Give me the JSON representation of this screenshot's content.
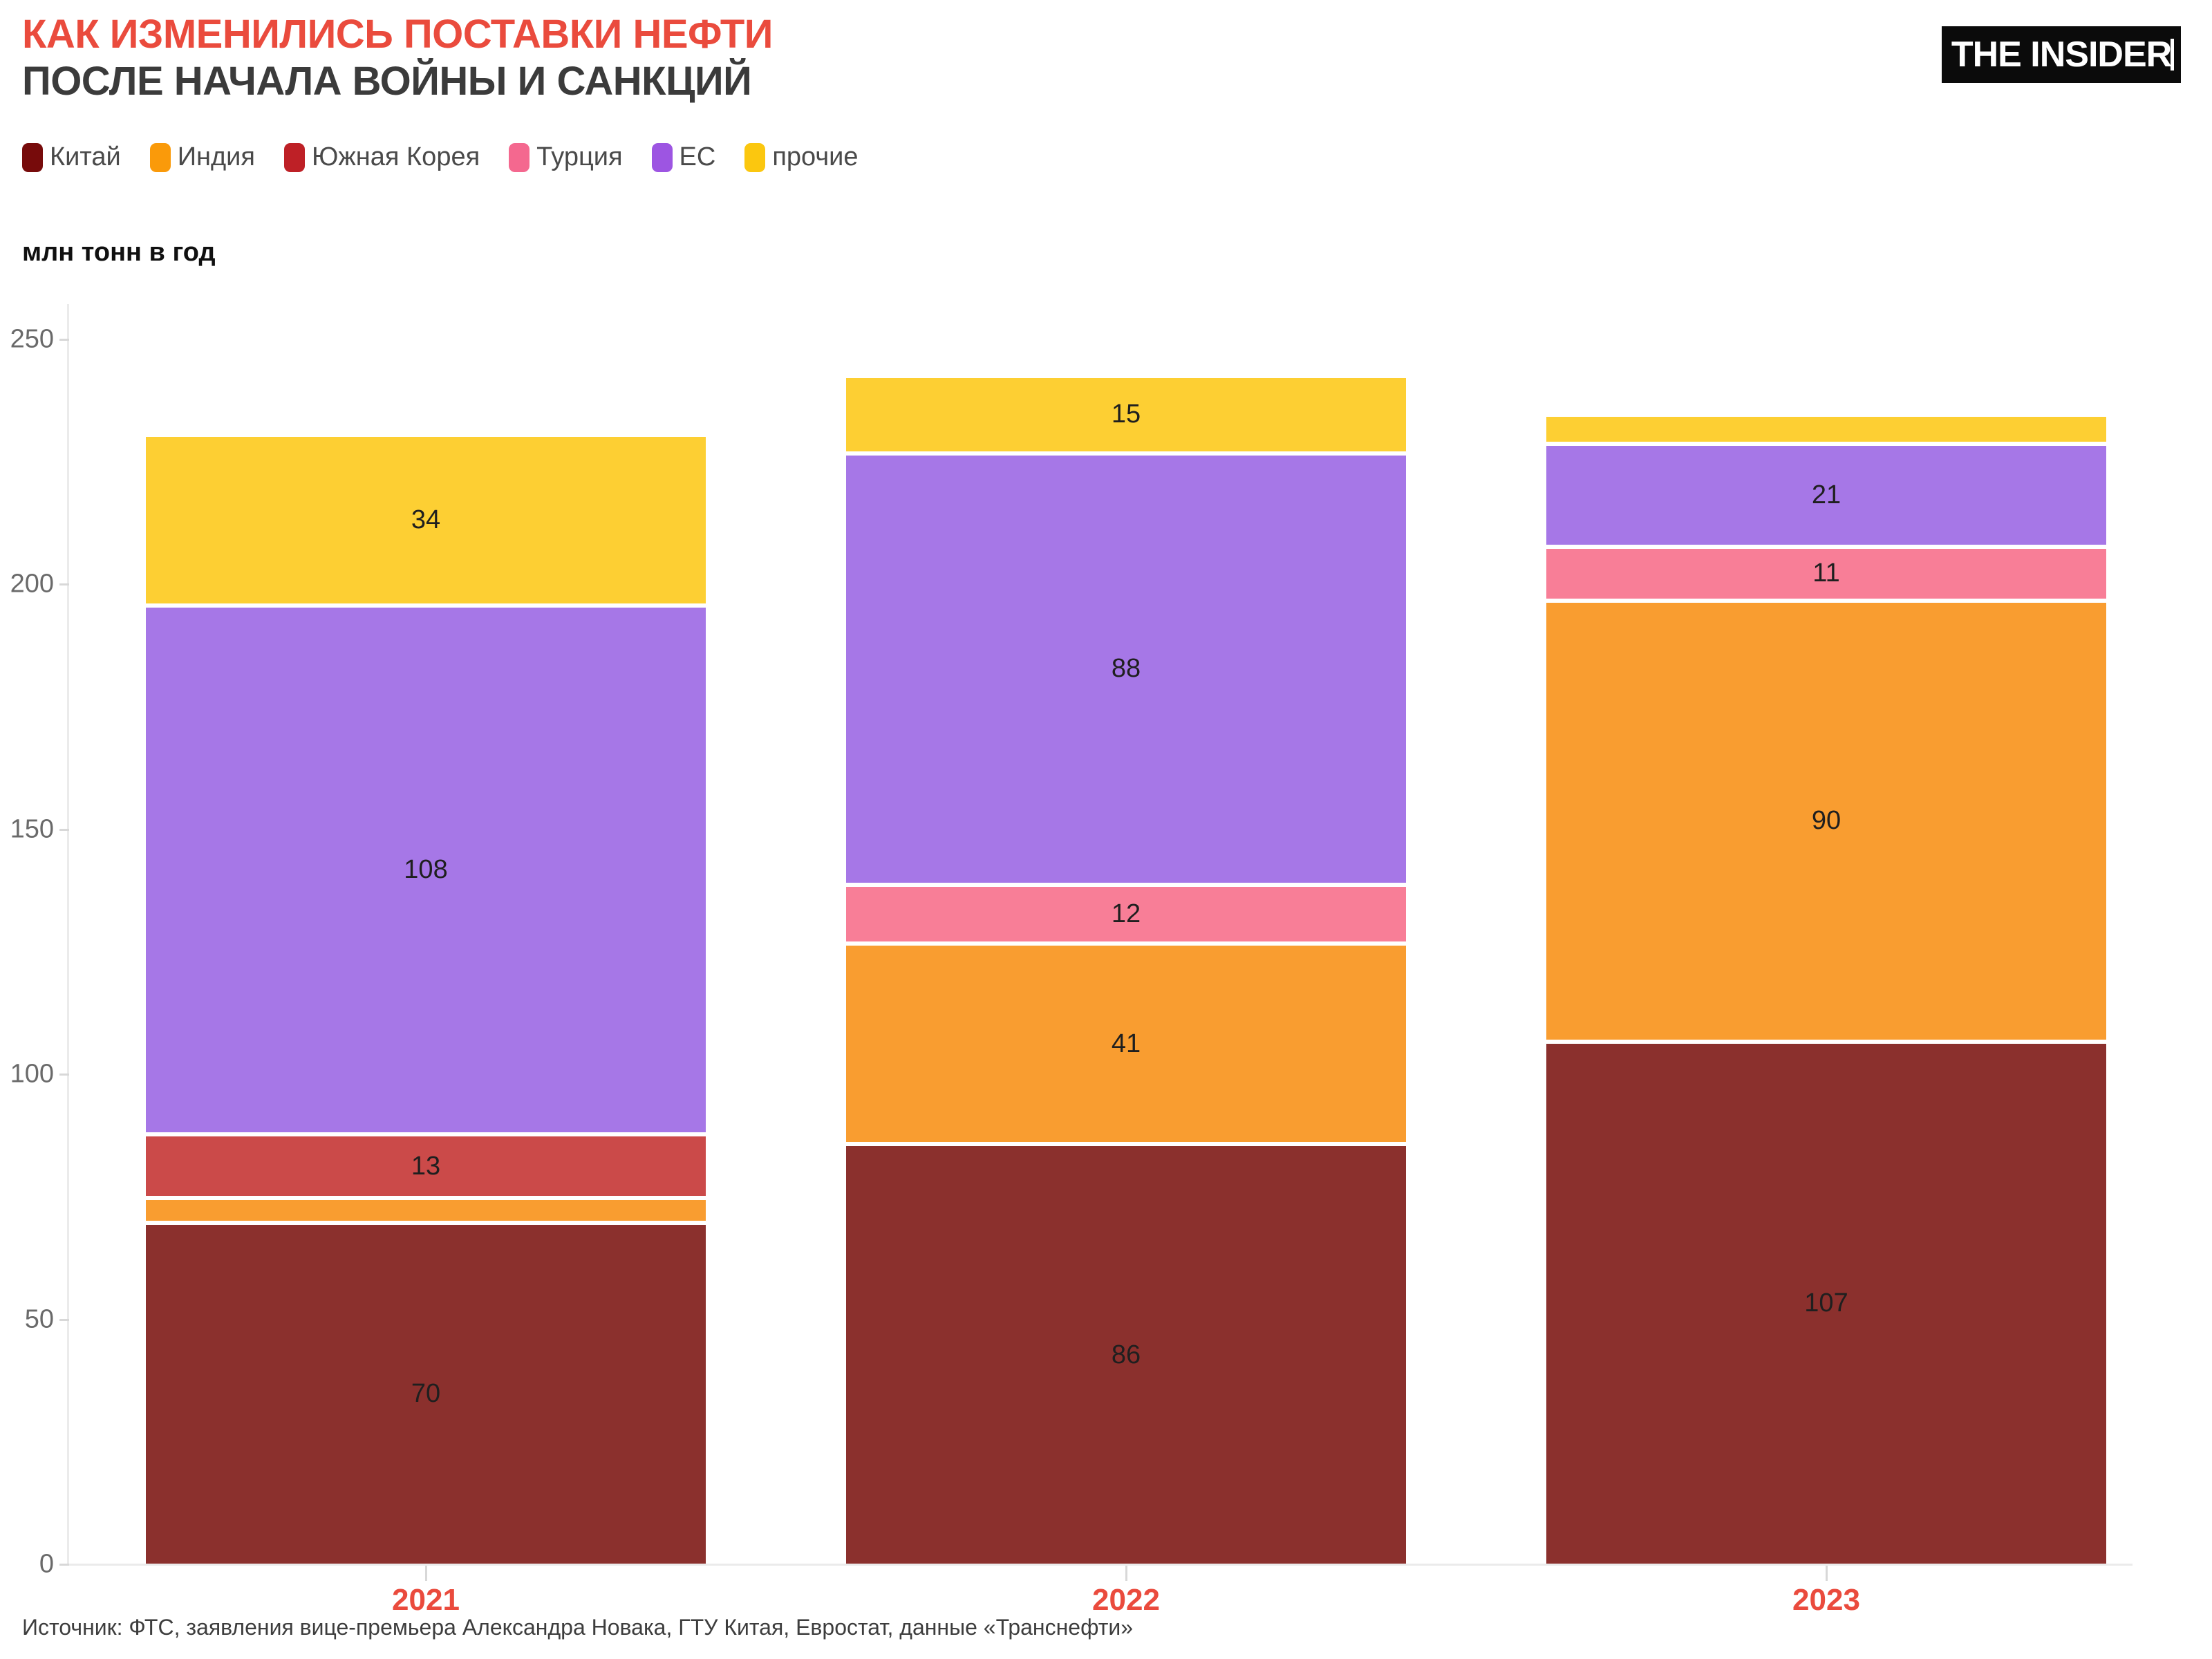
{
  "header": {
    "title_line1": "КАК ИЗМЕНИЛИСЬ ПОСТАВКИ НЕФТИ",
    "title_line2": "ПОСЛЕ НАЧАЛА ВОЙНЫ И САНКЦИЙ",
    "title_line1_color": "#EA4B3D",
    "title_line2_color": "#3B3B3B",
    "logo_text": "THE INSIDER"
  },
  "legend": {
    "items": [
      {
        "label": "Китай",
        "color": "#770B0B"
      },
      {
        "label": "Индия",
        "color": "#FA9A0A"
      },
      {
        "label": "Южная Корея",
        "color": "#BE2026"
      },
      {
        "label": "Турция",
        "color": "#F4688F"
      },
      {
        "label": "ЕС",
        "color": "#9D55E2"
      },
      {
        "label": "прочие",
        "color": "#FBC70F"
      }
    ]
  },
  "chart_data": {
    "type": "bar",
    "stacked": true,
    "title": "КАК ИЗМЕНИЛИСЬ ПОСТАВКИ НЕФТИ ПОСЛЕ НАЧАЛА ВОЙНЫ И САНКЦИЙ",
    "ylabel": "млн тонн в год",
    "categories": [
      "2021",
      "2022",
      "2023"
    ],
    "series": [
      {
        "name": "Китай",
        "values": [
          70,
          86,
          107
        ],
        "bar_color": "#8B302D",
        "legend_color": "#770B0B"
      },
      {
        "name": "Индия",
        "values": [
          5,
          41,
          90
        ],
        "bar_color": "#F99D30",
        "legend_color": "#FA9A0A"
      },
      {
        "name": "Южная Корея",
        "values": [
          13,
          0,
          0
        ],
        "bar_color": "#CB4A49",
        "legend_color": "#BE2026"
      },
      {
        "name": "Турция",
        "values": [
          0,
          12,
          11
        ],
        "bar_color": "#F87E97",
        "legend_color": "#F4688F"
      },
      {
        "name": "ЕС",
        "values": [
          108,
          88,
          21
        ],
        "bar_color": "#A677E7",
        "legend_color": "#9D55E2"
      },
      {
        "name": "прочие",
        "values": [
          34,
          15,
          5
        ],
        "bar_color": "#FDCF33",
        "legend_color": "#FBC70F"
      }
    ],
    "totals": [
      230,
      242,
      234
    ],
    "ylim": [
      0,
      250
    ],
    "yticks": [
      0,
      50,
      100,
      150,
      200,
      250
    ],
    "legend_position": "top",
    "grid": false,
    "xaxis_label_color": "#EA4B3D"
  },
  "footer": {
    "source": "Источник: ФТС, заявления вице-премьера Александра Новака, ГТУ Китая, Евростат, данные «Транснефти»"
  }
}
